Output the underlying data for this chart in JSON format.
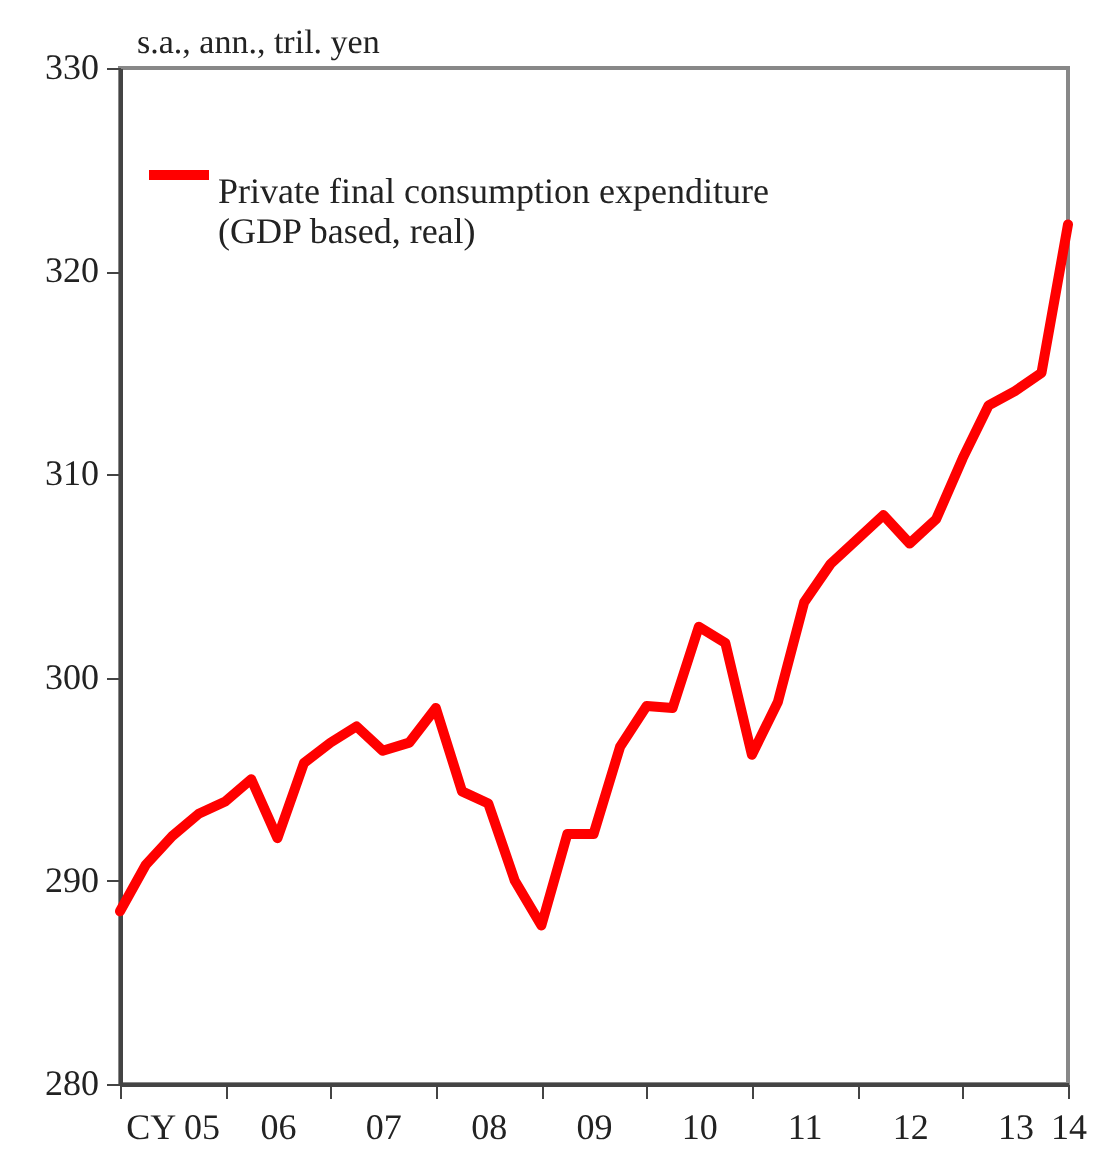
{
  "chart_data": {
    "type": "line",
    "ylabel": "s.a., ann., tril. yen",
    "x": [
      "2005-01",
      "2005-04",
      "2005-07",
      "2005-10",
      "2006-01",
      "2006-04",
      "2006-07",
      "2006-10",
      "2007-01",
      "2007-04",
      "2007-07",
      "2007-10",
      "2008-01",
      "2008-04",
      "2008-07",
      "2008-10",
      "2009-01",
      "2009-04",
      "2009-07",
      "2009-10",
      "2010-01",
      "2010-04",
      "2010-07",
      "2010-10",
      "2011-01",
      "2011-04",
      "2011-07",
      "2011-10",
      "2012-01",
      "2012-04",
      "2012-07",
      "2012-10",
      "2013-01",
      "2013-04",
      "2013-07",
      "2013-10",
      "2014-01"
    ],
    "series": [
      {
        "name": "Private final consumption expenditure\n(GDP based, real)",
        "color": "#ff0000",
        "values": [
          288.5,
          290.8,
          292.2,
          293.3,
          293.9,
          295.0,
          292.1,
          295.8,
          296.8,
          297.6,
          296.4,
          296.8,
          298.5,
          294.4,
          293.8,
          290.0,
          287.8,
          292.3,
          292.3,
          296.6,
          298.6,
          298.5,
          302.5,
          301.7,
          296.2,
          298.8,
          303.7,
          305.6,
          306.8,
          308.0,
          306.6,
          307.8,
          310.8,
          313.4,
          314.1,
          315.0,
          322.3
        ]
      }
    ],
    "xlim": [
      "2005-01",
      "2014-01"
    ],
    "xticks": [
      {
        "value": "2005-01",
        "label": null
      },
      {
        "value": "2006-01",
        "label": null
      },
      {
        "value": "2007-01",
        "label": null
      },
      {
        "value": "2008-01",
        "label": null
      },
      {
        "value": "2009-01",
        "label": null
      },
      {
        "value": "2010-01",
        "label": null
      },
      {
        "value": "2011-01",
        "label": null
      },
      {
        "value": "2012-01",
        "label": null
      },
      {
        "value": "2013-01",
        "label": null
      },
      {
        "value": "2014-01",
        "label": null
      },
      {
        "value": "2005-07",
        "label": "CY 05"
      },
      {
        "value": "2006-07",
        "label": "06"
      },
      {
        "value": "2007-07",
        "label": "07"
      },
      {
        "value": "2008-07",
        "label": "08"
      },
      {
        "value": "2009-07",
        "label": "09"
      },
      {
        "value": "2010-07",
        "label": "10"
      },
      {
        "value": "2011-07",
        "label": "11"
      },
      {
        "value": "2012-07",
        "label": "12"
      },
      {
        "value": "2013-07",
        "label": "13"
      },
      {
        "value": "2014-01",
        "label": "14"
      }
    ],
    "ylim": [
      280,
      330
    ],
    "yticks": [
      280,
      290,
      300,
      310,
      320,
      330
    ],
    "legend": "top left",
    "grid": false,
    "marker": "none",
    "line_style": "solid"
  }
}
